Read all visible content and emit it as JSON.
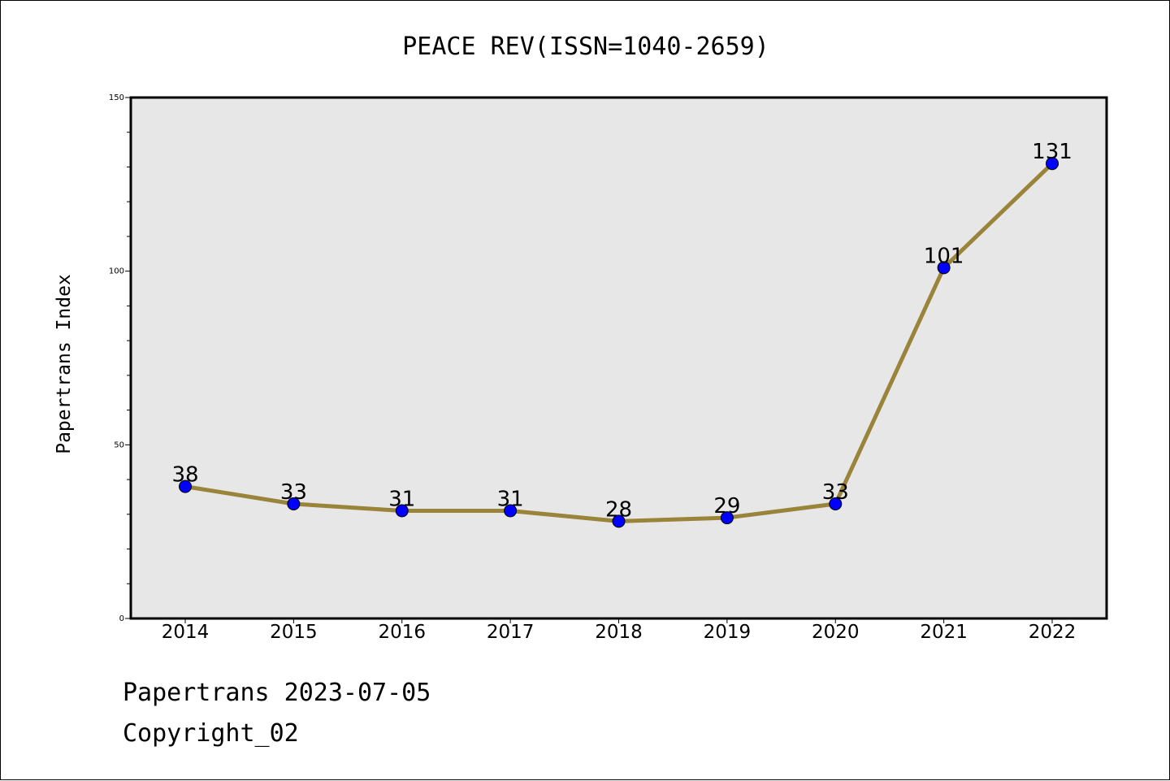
{
  "chart_data": {
    "type": "line",
    "title": "PEACE REV(ISSN=1040-2659)",
    "ylabel": "Papertrans Index",
    "xlabel": "",
    "categories": [
      "2014",
      "2015",
      "2016",
      "2017",
      "2018",
      "2019",
      "2020",
      "2021",
      "2022"
    ],
    "values": [
      38,
      33,
      31,
      31,
      28,
      29,
      33,
      101,
      131
    ],
    "data_labels": [
      "38",
      "33",
      "31",
      "31",
      "28",
      "29",
      "33",
      "101",
      "131"
    ],
    "ylim": [
      0,
      150
    ],
    "yticks": [
      0,
      50,
      100,
      150
    ],
    "ytick_labels": [
      "0",
      "50",
      "100",
      "150"
    ],
    "grid": false,
    "legend": "none",
    "colors": {
      "line": "#9a8439",
      "marker": "#0000ff",
      "plot_background": "#e7e7e7"
    }
  },
  "footer": {
    "line1": "Papertrans 2023-07-05",
    "line2": "Copyright_02"
  }
}
